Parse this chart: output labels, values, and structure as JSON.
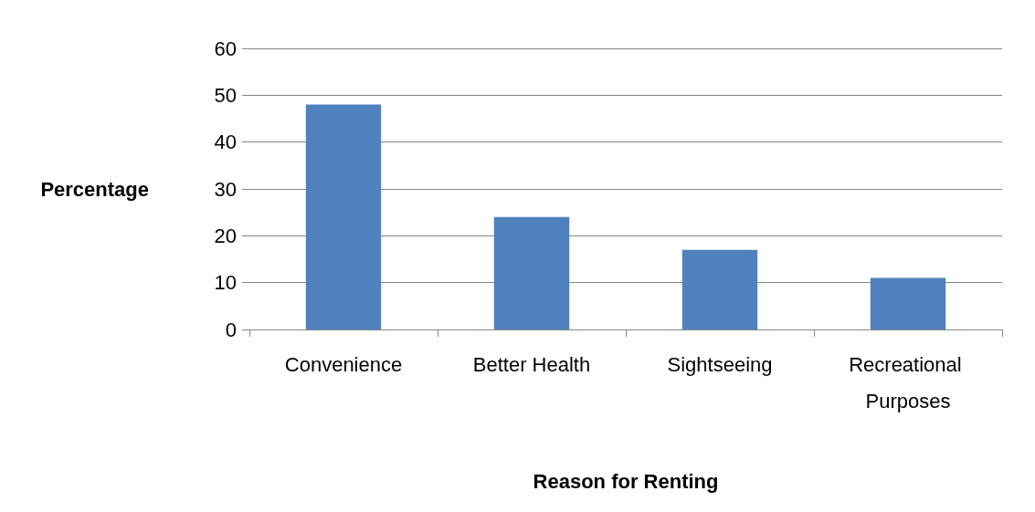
{
  "chart_data": {
    "type": "bar",
    "xlabel": "Reason for Renting",
    "ylabel": "Percentage",
    "categories": [
      "Convenience",
      "Better Health",
      "Sightseeing",
      "Recreational Purposes"
    ],
    "values": [
      48,
      24,
      17,
      11
    ],
    "color": "#4f81bd",
    "ylim": [
      0,
      60
    ],
    "yticks": [
      0,
      10,
      20,
      30,
      40,
      50,
      60
    ],
    "grid": "y"
  }
}
